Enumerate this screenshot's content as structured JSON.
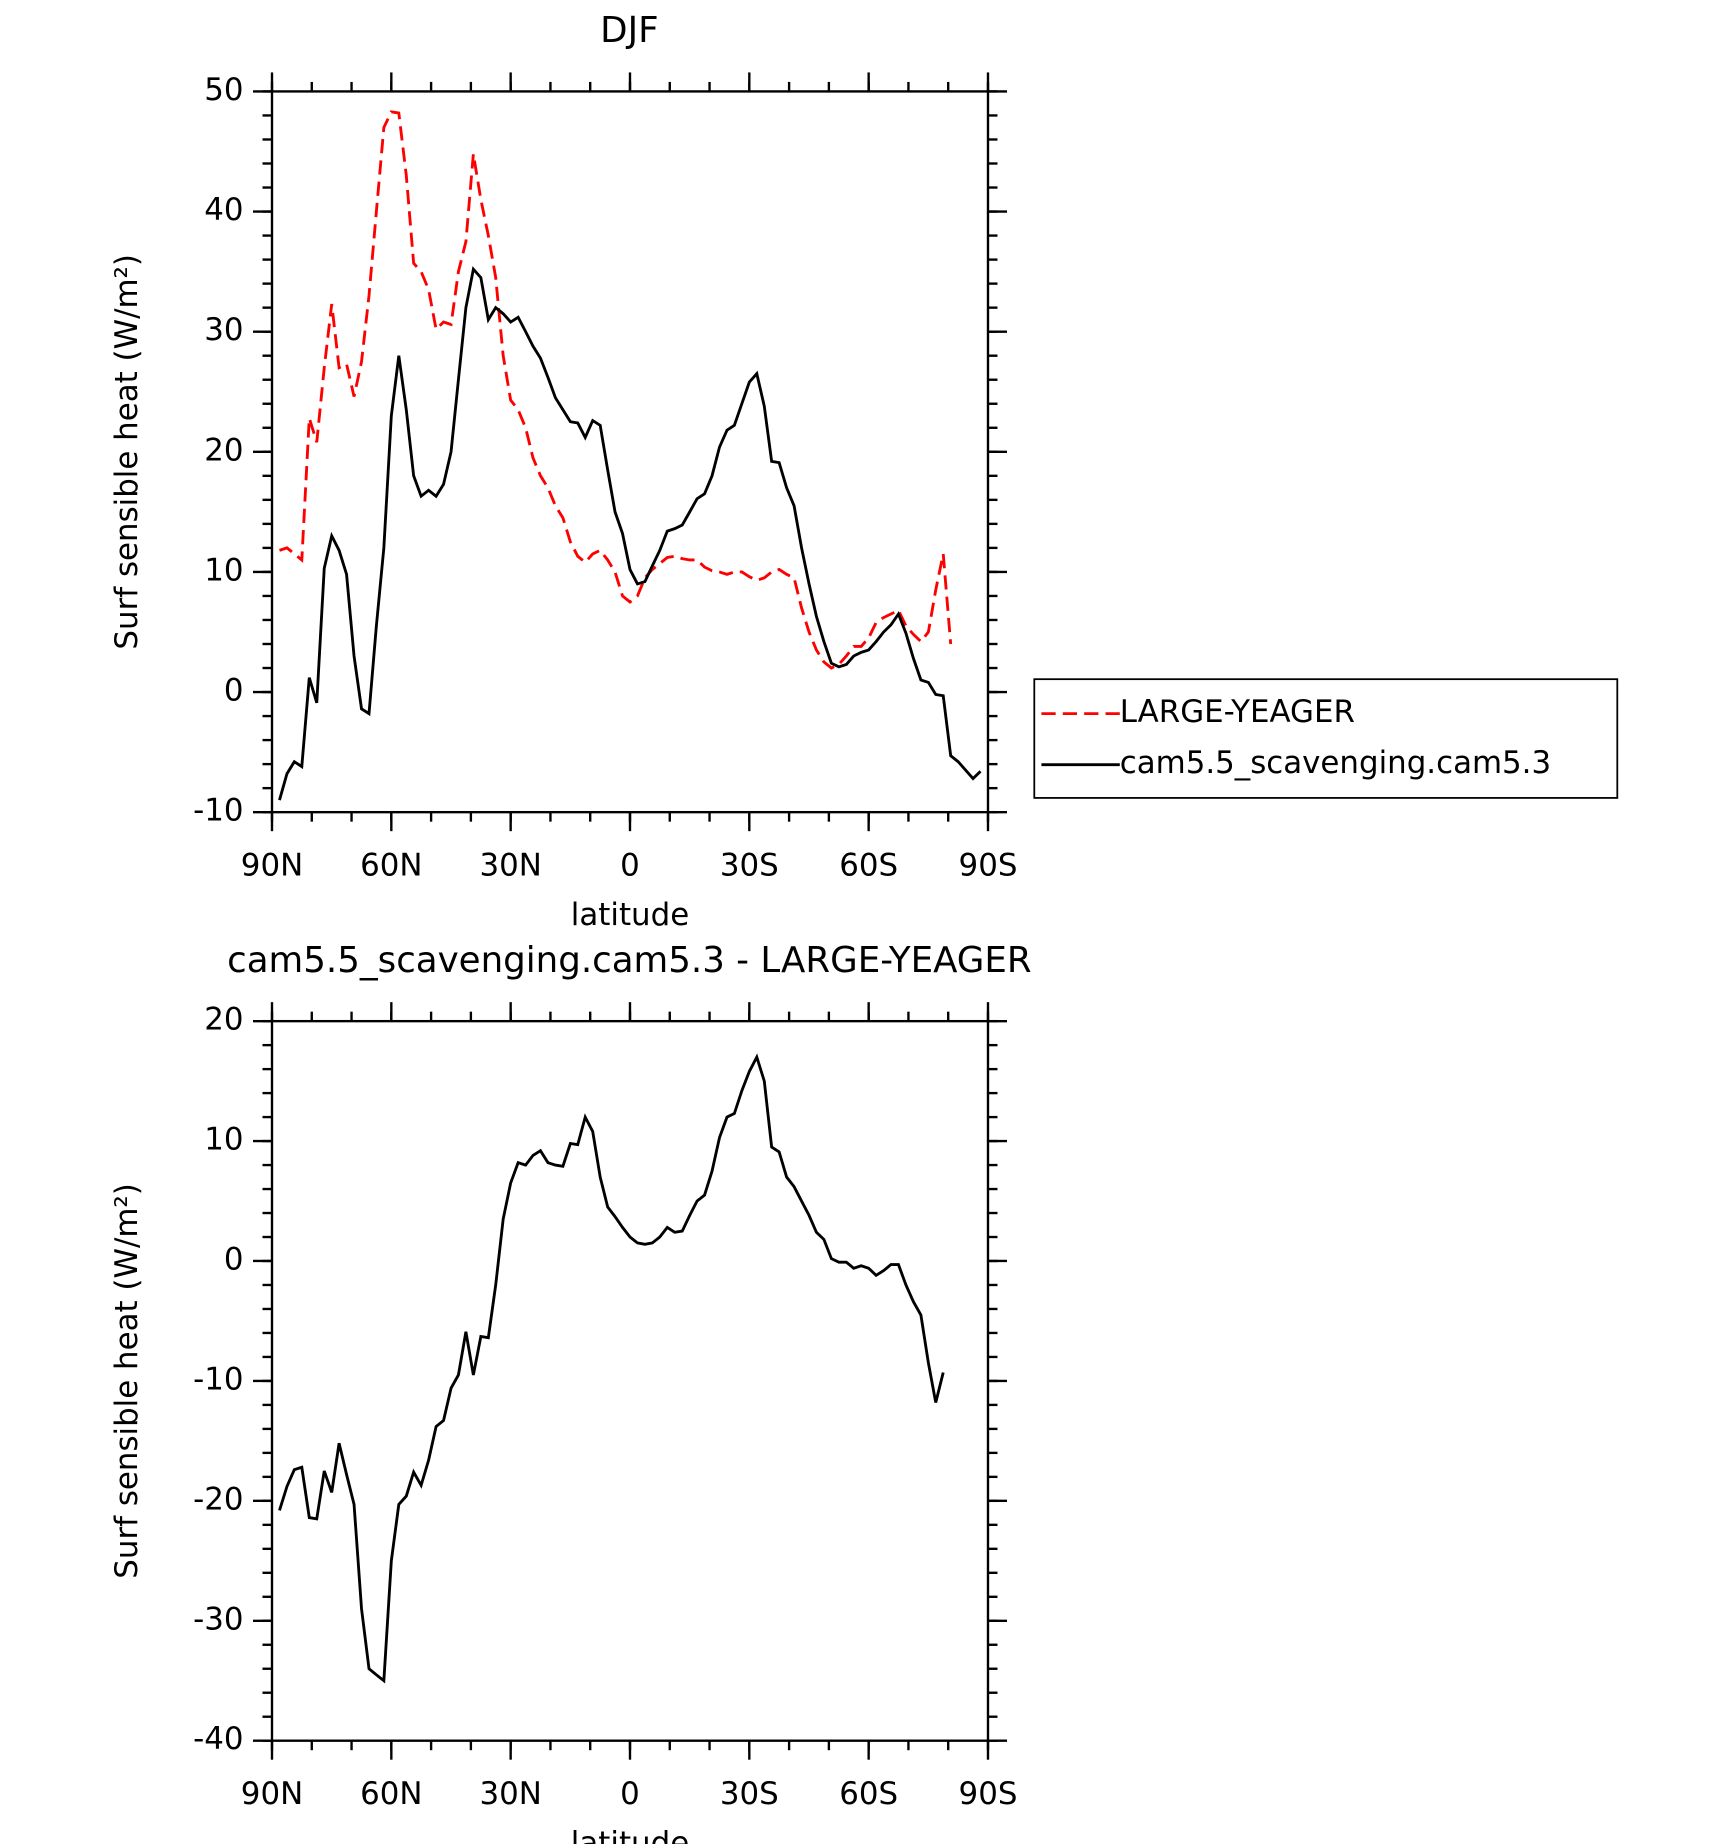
{
  "chart_data": [
    {
      "type": "line",
      "title": "DJF",
      "xlabel": "latitude",
      "ylabel": "Surf sensible heat (W/m²)",
      "x": [
        88.125,
        86.25,
        84.375,
        82.5,
        80.625,
        78.75,
        76.875,
        75,
        73.125,
        71.25,
        69.375,
        67.5,
        65.625,
        63.75,
        61.875,
        60,
        58.125,
        56.25,
        54.375,
        52.5,
        50.625,
        48.75,
        46.875,
        45,
        43.125,
        41.25,
        39.375,
        37.5,
        35.625,
        33.75,
        31.875,
        30,
        28.125,
        26.25,
        24.375,
        22.5,
        20.625,
        18.75,
        16.875,
        15,
        13.125,
        11.25,
        9.375,
        7.5,
        5.625,
        3.75,
        1.875,
        0,
        -1.875,
        -3.75,
        -5.625,
        -7.5,
        -9.375,
        -11.25,
        -13.125,
        -15,
        -16.875,
        -18.75,
        -20.625,
        -22.5,
        -24.375,
        -26.25,
        -28.125,
        -30,
        -31.875,
        -33.75,
        -35.625,
        -37.5,
        -39.375,
        -41.25,
        -43.125,
        -45,
        -46.875,
        -48.75,
        -50.625,
        -52.5,
        -54.375,
        -56.25,
        -58.125,
        -60,
        -61.875,
        -63.75,
        -65.625,
        -67.5,
        -69.375,
        -71.25,
        -73.125,
        -75,
        -76.875,
        -78.75,
        -80.625,
        -82.5,
        -84.375,
        -86.25,
        -88.125
      ],
      "series": [
        {
          "name": "LARGE-YEAGER",
          "color": "#ff0000",
          "dash": true,
          "values": [
            11.8,
            12,
            11.5,
            11,
            22.8,
            20.8,
            27,
            32.3,
            27,
            27.3,
            24.6,
            27.5,
            33,
            40,
            47,
            48.3,
            48.2,
            43,
            35.7,
            35,
            33.5,
            30.2,
            30.8,
            30.6,
            35,
            37.5,
            44.8,
            41,
            38,
            34.5,
            28,
            24.3,
            23.5,
            22,
            19.5,
            18,
            17,
            15.5,
            14.5,
            12.5,
            11.3,
            10.8,
            11.5,
            11.8,
            11,
            10,
            8,
            7.5,
            8,
            9.5,
            10.2,
            10.7,
            11.2,
            11.3,
            11.1,
            11,
            11,
            10.4,
            10.1,
            10,
            9.8,
            10,
            10,
            9.6,
            9.3,
            9.5,
            10,
            10.2,
            9.8,
            9.5,
            7,
            5,
            3.5,
            2.5,
            2,
            2.3,
            3,
            3.8,
            3.8,
            4.5,
            5.8,
            6.2,
            6.5,
            6.8,
            5.5,
            4.8,
            4.2,
            5,
            8.5,
            11.5,
            4,
            null,
            null,
            null,
            null
          ]
        },
        {
          "name": "cam5.5_scavenging.cam5.3",
          "color": "#000000",
          "dash": false,
          "values": [
            -9,
            -6.8,
            -5.8,
            -6.2,
            1.2,
            -0.9,
            10.3,
            13,
            11.8,
            9.8,
            3,
            -1.4,
            -1.8,
            5.5,
            12,
            23,
            28,
            23.5,
            18,
            16.3,
            16.8,
            16.3,
            17.3,
            20,
            26,
            32,
            35.2,
            34.5,
            31,
            32,
            31.5,
            30.8,
            31.2,
            30,
            28.8,
            27.8,
            26.2,
            24.5,
            23.5,
            22.5,
            22.4,
            21.2,
            22.6,
            22.2,
            18.5,
            15,
            13.2,
            10.2,
            9,
            9.2,
            10.5,
            11.8,
            13.4,
            13.6,
            13.9,
            15,
            16.1,
            16.5,
            18,
            20.4,
            21.8,
            22.2,
            24,
            25.8,
            26.5,
            23.8,
            19.2,
            19.1,
            17,
            15.5,
            12,
            9,
            6.3,
            4.2,
            2.4,
            2.1,
            2.3,
            3,
            3.3,
            3.5,
            4.2,
            5,
            5.6,
            6.5,
            4.9,
            2.8,
            1,
            0.8,
            -0.2,
            -0.3,
            -5.3,
            -5.8,
            -6.5,
            -7.2,
            -6.6
          ]
        }
      ],
      "xlim": [
        90,
        -90
      ],
      "xticks": [
        {
          "value": 90,
          "label": "90N"
        },
        {
          "value": 60,
          "label": "60N"
        },
        {
          "value": 30,
          "label": "30N"
        },
        0,
        {
          "value": -30,
          "label": "30S"
        },
        {
          "value": -60,
          "label": "60S"
        },
        {
          "value": -90,
          "label": "90S"
        }
      ],
      "ylim": [
        -10,
        50
      ],
      "yticks": [
        -10,
        0,
        10,
        20,
        30,
        40,
        50
      ],
      "legend": "right"
    },
    {
      "type": "line",
      "title": "cam5.5_scavenging.cam5.3 - LARGE-YEAGER",
      "xlabel": "latitude",
      "ylabel": "Surf sensible heat (W/m²)",
      "x": [
        88.125,
        86.25,
        84.375,
        82.5,
        80.625,
        78.75,
        76.875,
        75,
        73.125,
        71.25,
        69.375,
        67.5,
        65.625,
        63.75,
        61.875,
        60,
        58.125,
        56.25,
        54.375,
        52.5,
        50.625,
        48.75,
        46.875,
        45,
        43.125,
        41.25,
        39.375,
        37.5,
        35.625,
        33.75,
        31.875,
        30,
        28.125,
        26.25,
        24.375,
        22.5,
        20.625,
        18.75,
        16.875,
        15,
        13.125,
        11.25,
        9.375,
        7.5,
        5.625,
        3.75,
        1.875,
        0,
        -1.875,
        -3.75,
        -5.625,
        -7.5,
        -9.375,
        -11.25,
        -13.125,
        -15,
        -16.875,
        -18.75,
        -20.625,
        -22.5,
        -24.375,
        -26.25,
        -28.125,
        -30,
        -31.875,
        -33.75,
        -35.625,
        -37.5,
        -39.375,
        -41.25,
        -43.125,
        -45,
        -46.875,
        -48.75,
        -50.625,
        -52.5,
        -54.375,
        -56.25,
        -58.125,
        -60,
        -61.875,
        -63.75,
        -65.625,
        -67.5,
        -69.375,
        -71.25,
        -73.125,
        -75,
        -76.875,
        -78.75,
        -80.625,
        -82.5,
        -84.375,
        -86.25,
        -88.125
      ],
      "series": [
        {
          "color": "#000000",
          "dash": false,
          "values": [
            -20.8,
            -18.8,
            -17.4,
            -17.2,
            -21.4,
            -21.5,
            -17.5,
            -19.3,
            -15.2,
            -17.8,
            -20.3,
            -29,
            -34,
            -34.5,
            -35,
            -25,
            -20.3,
            -19.6,
            -17.6,
            -18.7,
            -16.6,
            -13.8,
            -13.3,
            -10.6,
            -9.5,
            -5.9,
            -9.5,
            -6.3,
            -6.4,
            -2,
            3.5,
            6.5,
            8.2,
            8,
            8.8,
            9.2,
            8.2,
            8,
            7.9,
            9.8,
            9.7,
            12,
            10.8,
            7,
            4.5,
            3.7,
            2.8,
            2,
            1.5,
            1.4,
            1.5,
            2,
            2.8,
            2.4,
            2.5,
            3.8,
            5,
            5.5,
            7.5,
            10.3,
            12,
            12.3,
            14.2,
            15.8,
            17,
            15,
            9.5,
            9.1,
            7,
            6.2,
            5,
            3.8,
            2.4,
            1.8,
            0.2,
            -0.1,
            -0.1,
            -0.6,
            -0.4,
            -0.6,
            -1.2,
            -0.8,
            -0.3,
            -0.3,
            -2,
            -3.4,
            -4.5,
            -8.5,
            -11.8,
            -9.3,
            null,
            null,
            null,
            null,
            null
          ]
        }
      ],
      "xlim": [
        90,
        -90
      ],
      "xticks": [
        {
          "value": 90,
          "label": "90N"
        },
        {
          "value": 60,
          "label": "60N"
        },
        {
          "value": 30,
          "label": "30N"
        },
        0,
        {
          "value": -30,
          "label": "30S"
        },
        {
          "value": -60,
          "label": "60S"
        },
        {
          "value": -90,
          "label": "90S"
        }
      ],
      "ylim": [
        -40,
        20
      ],
      "yticks": [
        -40,
        -30,
        -20,
        -10,
        0,
        10,
        20
      ]
    }
  ]
}
